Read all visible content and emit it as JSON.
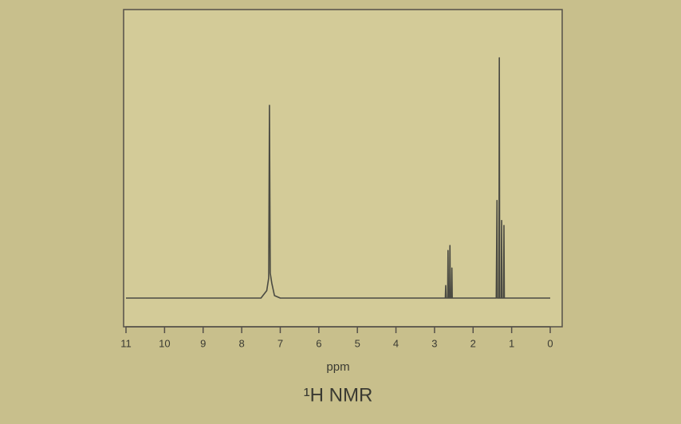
{
  "chart_data": {
    "type": "line",
    "title": "¹H NMR",
    "x_label": "ppm",
    "xlim": [
      11,
      0
    ],
    "xticks": [
      11,
      10,
      9,
      8,
      7,
      6,
      5,
      4,
      3,
      2,
      1,
      0
    ],
    "ylim": [
      0,
      100
    ],
    "color": "#4a4a42",
    "x": [
      11,
      7.5,
      7.35,
      7.3,
      7.28,
      7.26,
      7.22,
      7.15,
      7.0,
      2.8,
      2.72,
      2.71,
      2.7,
      2.66,
      2.65,
      2.64,
      2.61,
      2.6,
      2.59,
      2.56,
      2.55,
      2.54,
      1.4,
      1.38,
      1.37,
      1.33,
      1.32,
      1.31,
      1.27,
      1.26,
      1.25,
      1.21,
      1.2,
      1.19,
      0
    ],
    "values": [
      0,
      0,
      3,
      8,
      77,
      10,
      6,
      1,
      0,
      0,
      0,
      5,
      0,
      0,
      19,
      0,
      0,
      21,
      0,
      0,
      12,
      0,
      0,
      39,
      0,
      0,
      96,
      0,
      0,
      31,
      0,
      0,
      29,
      0,
      0
    ]
  }
}
